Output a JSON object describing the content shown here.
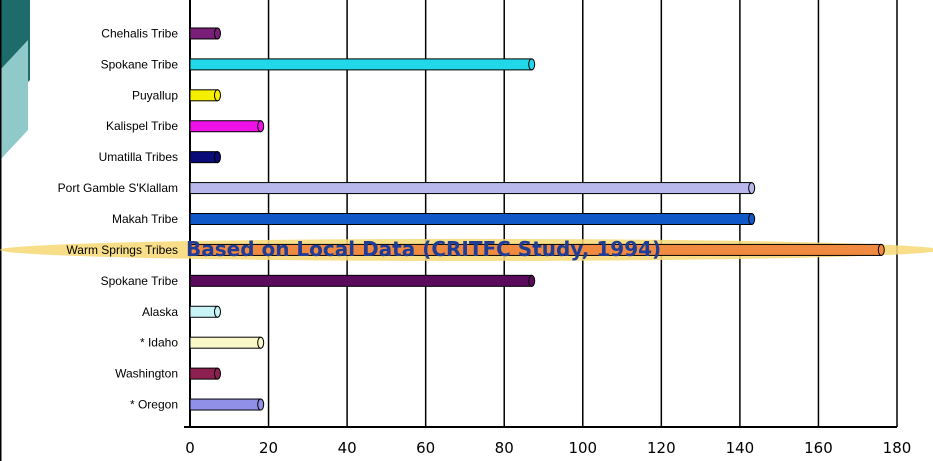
{
  "chart_data": {
    "type": "bar",
    "orientation": "horizontal",
    "categories": [
      "Chehalis Tribe",
      "Spokane Tribe",
      "Puyallup",
      "Kalispel Tribe",
      "Umatilla Tribes",
      "Port Gamble S'Klallam",
      "Makah Tribe",
      "Warm Springs Tribes",
      "Spokane Tribe",
      "Alaska",
      "* Idaho",
      "Washington",
      "* Oregon"
    ],
    "values": [
      7,
      87,
      7,
      18,
      7,
      143,
      143,
      176,
      87,
      7,
      18,
      7,
      18
    ],
    "bar_colors": [
      "#7a1f78",
      "#22d8e8",
      "#f5f000",
      "#f010e8",
      "#0a0a78",
      "#b8b8ec",
      "#1058c8",
      "#f08a40",
      "#5c0a5c",
      "#c8f4f8",
      "#f8f8c8",
      "#8c2050",
      "#9090e8"
    ],
    "highlight_index": 7,
    "xlim": [
      0,
      180
    ],
    "xticks": [
      0,
      20,
      40,
      60,
      80,
      100,
      120,
      140,
      160,
      180
    ],
    "grid": true,
    "annotation": "Based on Local Data (CRITFC Study, 1994)"
  }
}
